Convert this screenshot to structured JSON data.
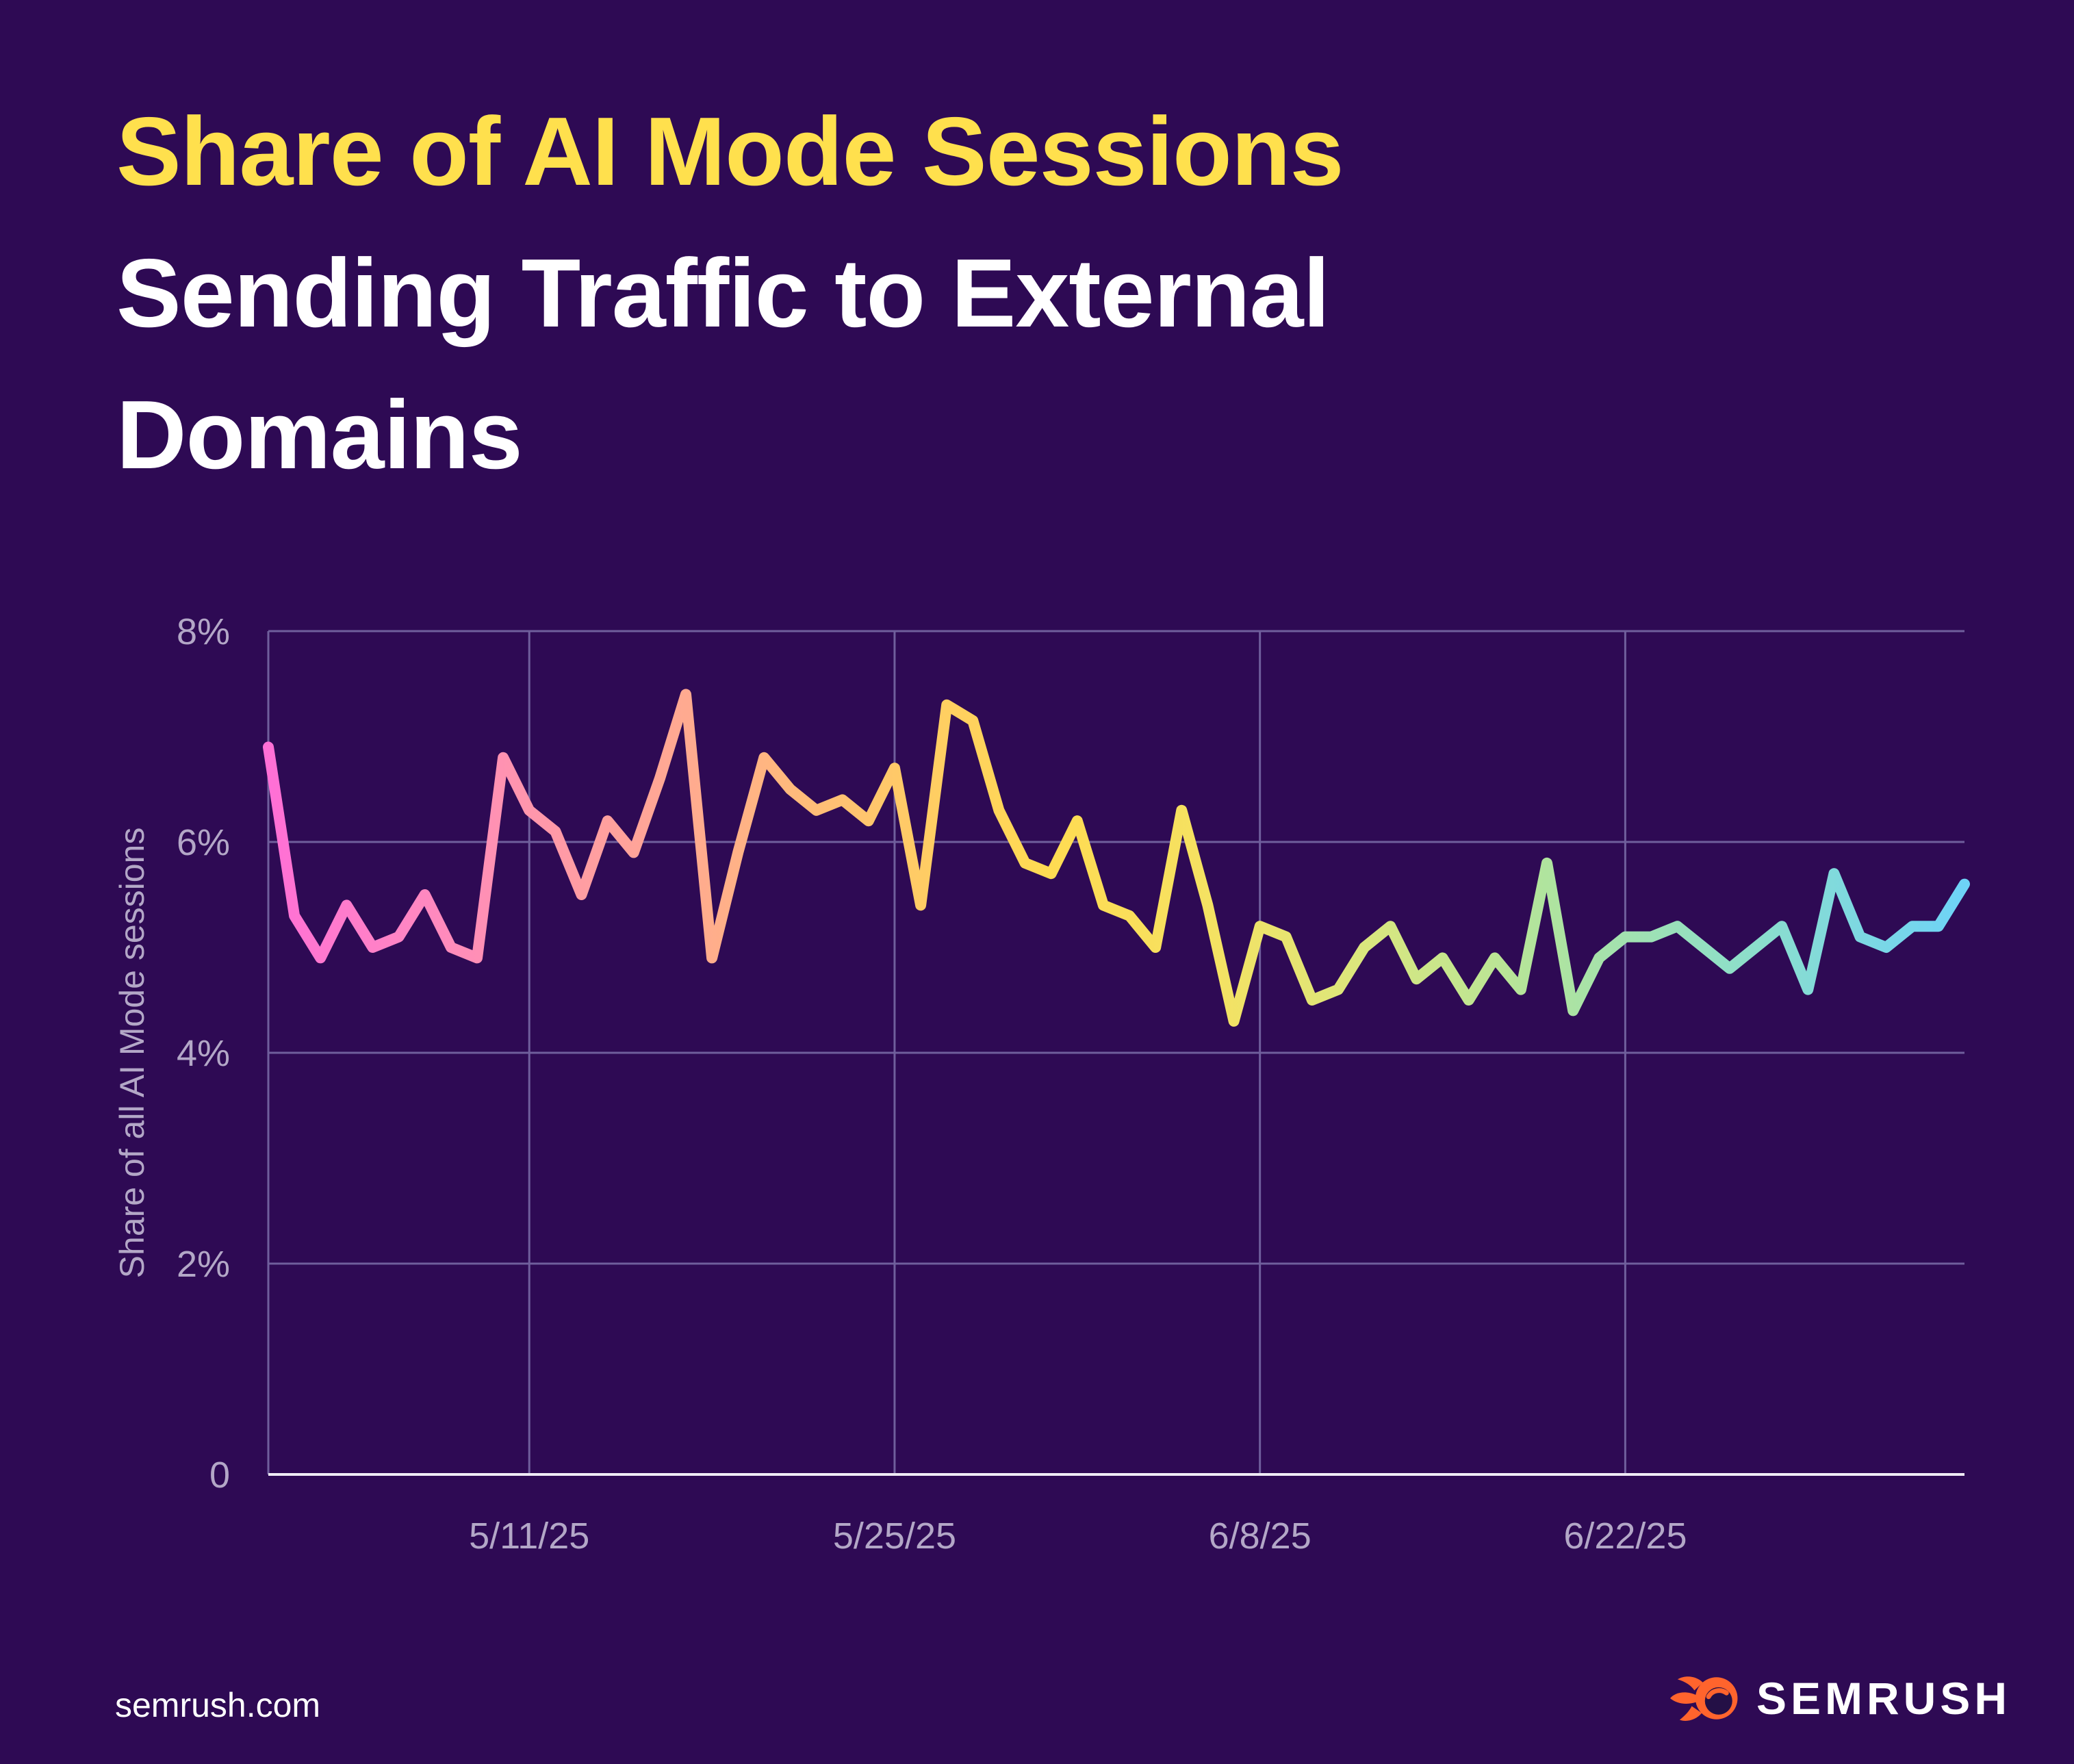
{
  "page": {
    "background": "#2E0A54"
  },
  "header": {
    "title_line1": "Share of AI Mode Sessions",
    "title_line2": "Sending Traffic to External",
    "title_line3": "Domains",
    "title_line1_color": "#FFE04D",
    "title_line23_color": "#FFFFFF"
  },
  "footer": {
    "site": "semrush.com",
    "brand": "SEMRUSH",
    "logo_orange": "#FF642D",
    "logo_ball_inner": "#241046"
  },
  "chart_data": {
    "type": "line",
    "title": "",
    "xlabel": "",
    "ylabel": "Share of all AI Mode sessions",
    "ylim": [
      0,
      8
    ],
    "grid": true,
    "legend_position": "none",
    "yticks": [
      {
        "label": "8%",
        "value": 8
      },
      {
        "label": "6%",
        "value": 6
      },
      {
        "label": "4%",
        "value": 4
      },
      {
        "label": "2%",
        "value": 2
      },
      {
        "label": "0",
        "value": 0
      }
    ],
    "xticks": [
      {
        "label": "5/11/25",
        "index": 10
      },
      {
        "label": "5/25/25",
        "index": 24
      },
      {
        "label": "6/8/25",
        "index": 38
      },
      {
        "label": "6/22/25",
        "index": 52
      }
    ],
    "categories": [
      "5/1/25",
      "5/2/25",
      "5/3/25",
      "5/4/25",
      "5/5/25",
      "5/6/25",
      "5/7/25",
      "5/8/25",
      "5/9/25",
      "5/10/25",
      "5/11/25",
      "5/12/25",
      "5/13/25",
      "5/14/25",
      "5/15/25",
      "5/16/25",
      "5/17/25",
      "5/18/25",
      "5/19/25",
      "5/20/25",
      "5/21/25",
      "5/22/25",
      "5/23/25",
      "5/24/25",
      "5/25/25",
      "5/26/25",
      "5/27/25",
      "5/28/25",
      "5/29/25",
      "5/30/25",
      "5/31/25",
      "6/1/25",
      "6/2/25",
      "6/3/25",
      "6/4/25",
      "6/5/25",
      "6/6/25",
      "6/7/25",
      "6/8/25",
      "6/9/25",
      "6/10/25",
      "6/11/25",
      "6/12/25",
      "6/13/25",
      "6/14/25",
      "6/15/25",
      "6/16/25",
      "6/17/25",
      "6/18/25",
      "6/19/25",
      "6/20/25",
      "6/21/25",
      "6/22/25",
      "6/23/25",
      "6/24/25",
      "6/25/25",
      "6/26/25",
      "6/27/25",
      "6/28/25",
      "6/29/25",
      "6/30/25",
      "7/1/25",
      "7/2/25",
      "7/3/25",
      "7/4/25",
      "7/5/25"
    ],
    "values": [
      6.9,
      5.3,
      4.9,
      5.4,
      5.0,
      5.1,
      5.5,
      5.0,
      4.9,
      6.8,
      6.3,
      6.1,
      5.5,
      6.2,
      5.9,
      6.6,
      7.4,
      4.9,
      5.9,
      6.8,
      6.5,
      6.3,
      6.4,
      6.2,
      6.7,
      5.4,
      7.3,
      7.15,
      6.3,
      5.8,
      5.7,
      6.2,
      5.4,
      5.3,
      5.0,
      6.3,
      5.4,
      4.3,
      5.2,
      5.1,
      4.5,
      4.6,
      5.0,
      5.2,
      4.7,
      4.9,
      4.5,
      4.9,
      4.6,
      5.8,
      4.4,
      4.9,
      5.1,
      5.1,
      5.2,
      5.0,
      4.8,
      5.0,
      5.2,
      4.6,
      5.7,
      5.1,
      5.0,
      5.2,
      5.2,
      5.6
    ],
    "colors": {
      "grid": "#6F5F9C",
      "baseline": "#EFEBF5",
      "tick_label": "#B3A7C7",
      "axis_title": "#B3A7C7",
      "line_width": 16
    },
    "line_gradient": [
      {
        "offset": 0.0,
        "color": "#FF6FD6"
      },
      {
        "offset": 0.08,
        "color": "#FF85C4"
      },
      {
        "offset": 0.18,
        "color": "#FF9CA4"
      },
      {
        "offset": 0.26,
        "color": "#FFAD8C"
      },
      {
        "offset": 0.36,
        "color": "#FFC76B"
      },
      {
        "offset": 0.46,
        "color": "#FFDB52"
      },
      {
        "offset": 0.56,
        "color": "#F4E263"
      },
      {
        "offset": 0.65,
        "color": "#D9E77F"
      },
      {
        "offset": 0.75,
        "color": "#B1E49D"
      },
      {
        "offset": 0.86,
        "color": "#90DFC6"
      },
      {
        "offset": 1.0,
        "color": "#6ED3F7"
      }
    ]
  }
}
